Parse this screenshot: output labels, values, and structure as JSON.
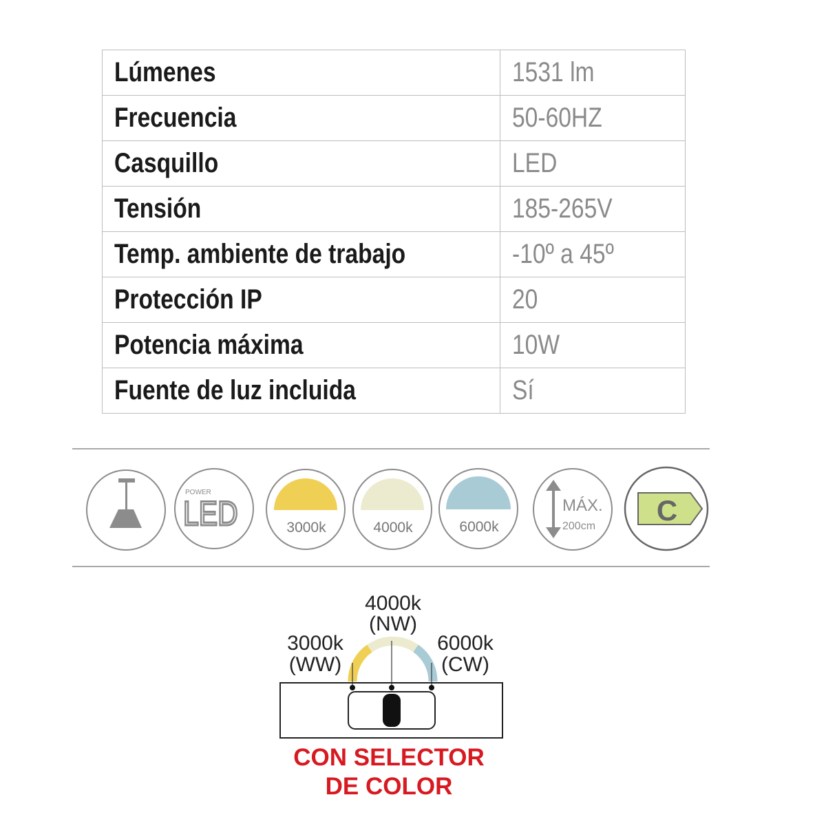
{
  "specs": [
    {
      "label": "Lúmenes",
      "value": "1531 lm"
    },
    {
      "label": "Frecuencia",
      "value": "50-60HZ"
    },
    {
      "label": "Casquillo",
      "value": "LED"
    },
    {
      "label": "Tensión",
      "value": "185-265V"
    },
    {
      "label": "Temp. ambiente de trabajo",
      "value": "-10º a 45º"
    },
    {
      "label": "Protección IP",
      "value": "20"
    },
    {
      "label": "Potencia máxima",
      "value": "10W"
    },
    {
      "label": "Fuente de luz incluida",
      "value": "Sí"
    }
  ],
  "icons": {
    "pendant": "pendant-lamp-icon",
    "led_small": "POWER",
    "led_big": "LED",
    "warm": {
      "label": "3000k",
      "color": "#f0cf55"
    },
    "neutral": {
      "label": "4000k",
      "color": "#ecebd0"
    },
    "cool": {
      "label": "6000k",
      "color": "#a9cbd6"
    },
    "height_max": "MÁX.",
    "height_value": "200cm",
    "energy_class": "C",
    "energy_color": "#cfe08a"
  },
  "selector": {
    "warm_temp": "3000k",
    "warm_code": "(WW)",
    "neutral_temp": "4000k",
    "neutral_code": "(NW)",
    "cool_temp": "6000k",
    "cool_code": "(CW)",
    "caption_1": "CON SELECTOR",
    "caption_2": "DE COLOR",
    "caption_color": "#d71920"
  }
}
